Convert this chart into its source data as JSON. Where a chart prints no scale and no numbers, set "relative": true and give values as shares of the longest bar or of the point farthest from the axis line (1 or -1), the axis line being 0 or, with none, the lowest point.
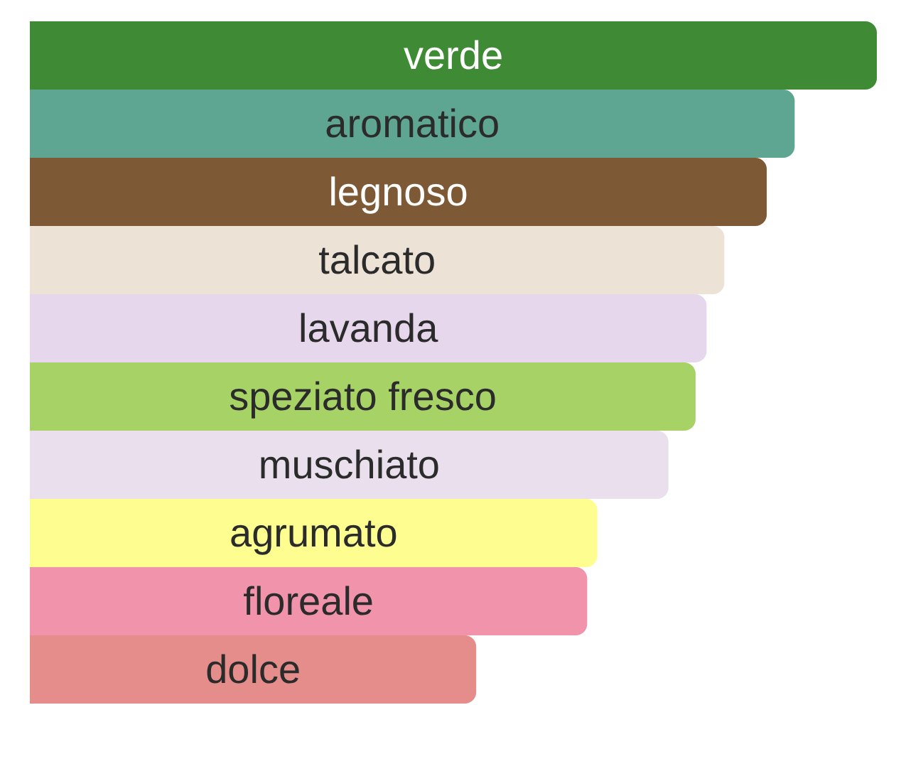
{
  "chart_data": {
    "type": "bar",
    "orientation": "horizontal",
    "relative": true,
    "categories": [
      "verde",
      "aromatico",
      "legnoso",
      "talcato",
      "lavanda",
      "speziato fresco",
      "muschiato",
      "agrumato",
      "floreale",
      "dolce"
    ],
    "values": [
      1,
      0.903,
      0.87,
      0.82,
      0.799,
      0.786,
      0.754,
      0.67,
      0.658,
      0.527
    ],
    "colors": [
      "#3f8a34",
      "#5fa692",
      "#7d5a35",
      "#ede2d6",
      "#e6d7ec",
      "#a7d366",
      "#eae0ed",
      "#fdfd90",
      "#f093ab",
      "#e58d8a"
    ]
  }
}
